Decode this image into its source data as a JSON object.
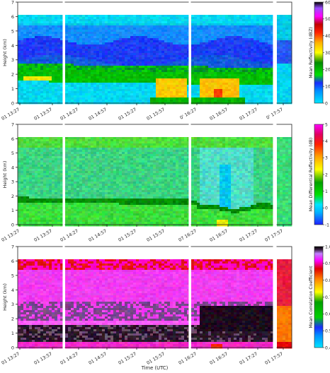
{
  "chart_data": [
    {
      "type": "heatmap",
      "ylabel": "Height (km)",
      "ylim": [
        0,
        7
      ],
      "yticks": [
        "0",
        "1",
        "2",
        "3",
        "4",
        "5",
        "6",
        "7"
      ],
      "xticks": [
        "01 13:27",
        "01 13:57",
        "01 14:27",
        "01 14:57",
        "01 15:27",
        "01 15:57",
        "0' 16:27",
        "01 16:57",
        "01 17:27",
        "0' 17:57"
      ],
      "colorbar": {
        "label": "Mean Reflectivity (dBZ)",
        "range": [
          0,
          60
        ],
        "ticks": [
          "0",
          "10",
          "20",
          "30",
          "40",
          "50",
          "60"
        ]
      },
      "description_values": {
        "bright_band_height_km": 1.8,
        "echo_top_km": 6.2
      }
    },
    {
      "type": "heatmap",
      "ylabel": "Height (km)",
      "ylim": [
        0,
        7
      ],
      "yticks": [
        "0",
        "1",
        "2",
        "3",
        "4",
        "5",
        "6",
        "7"
      ],
      "xticks": [
        "01 13:27",
        "01 13:57",
        "01 14:27",
        "01 14:57",
        "01 15:27",
        "01 15:57",
        "07 16:27",
        "01 16:57",
        "01 17:27",
        "07 17:57"
      ],
      "colorbar": {
        "label": "Mean Differential Reflectivity (dB)",
        "range": [
          -1,
          5
        ],
        "ticks": [
          "-1",
          "0",
          "1",
          "2",
          "3",
          "4",
          "5"
        ]
      },
      "description_values": {
        "melting_layer_km": 1.8
      }
    },
    {
      "type": "heatmap",
      "ylabel": "Height (km)",
      "xlabel": "Time (UTC)",
      "ylim": [
        0,
        7
      ],
      "yticks": [
        "0",
        "1",
        "2",
        "3",
        "4",
        "5",
        "6",
        "7"
      ],
      "xticks": [
        "01 13:27",
        "01 13:57",
        "01 14:27",
        "01 14:57",
        "01 15:27",
        "01 15:57",
        "01 16:27",
        "01 16:57",
        "01 17:27",
        "01 17:57"
      ],
      "colorbar": {
        "label": "Mean Correlation Coefficient",
        "range": [
          0.4,
          1.0
        ],
        "ticks": [
          "0.4",
          "0.5",
          "0.6",
          "0.7",
          "0.8",
          "0.9",
          "1.0"
        ]
      }
    }
  ]
}
